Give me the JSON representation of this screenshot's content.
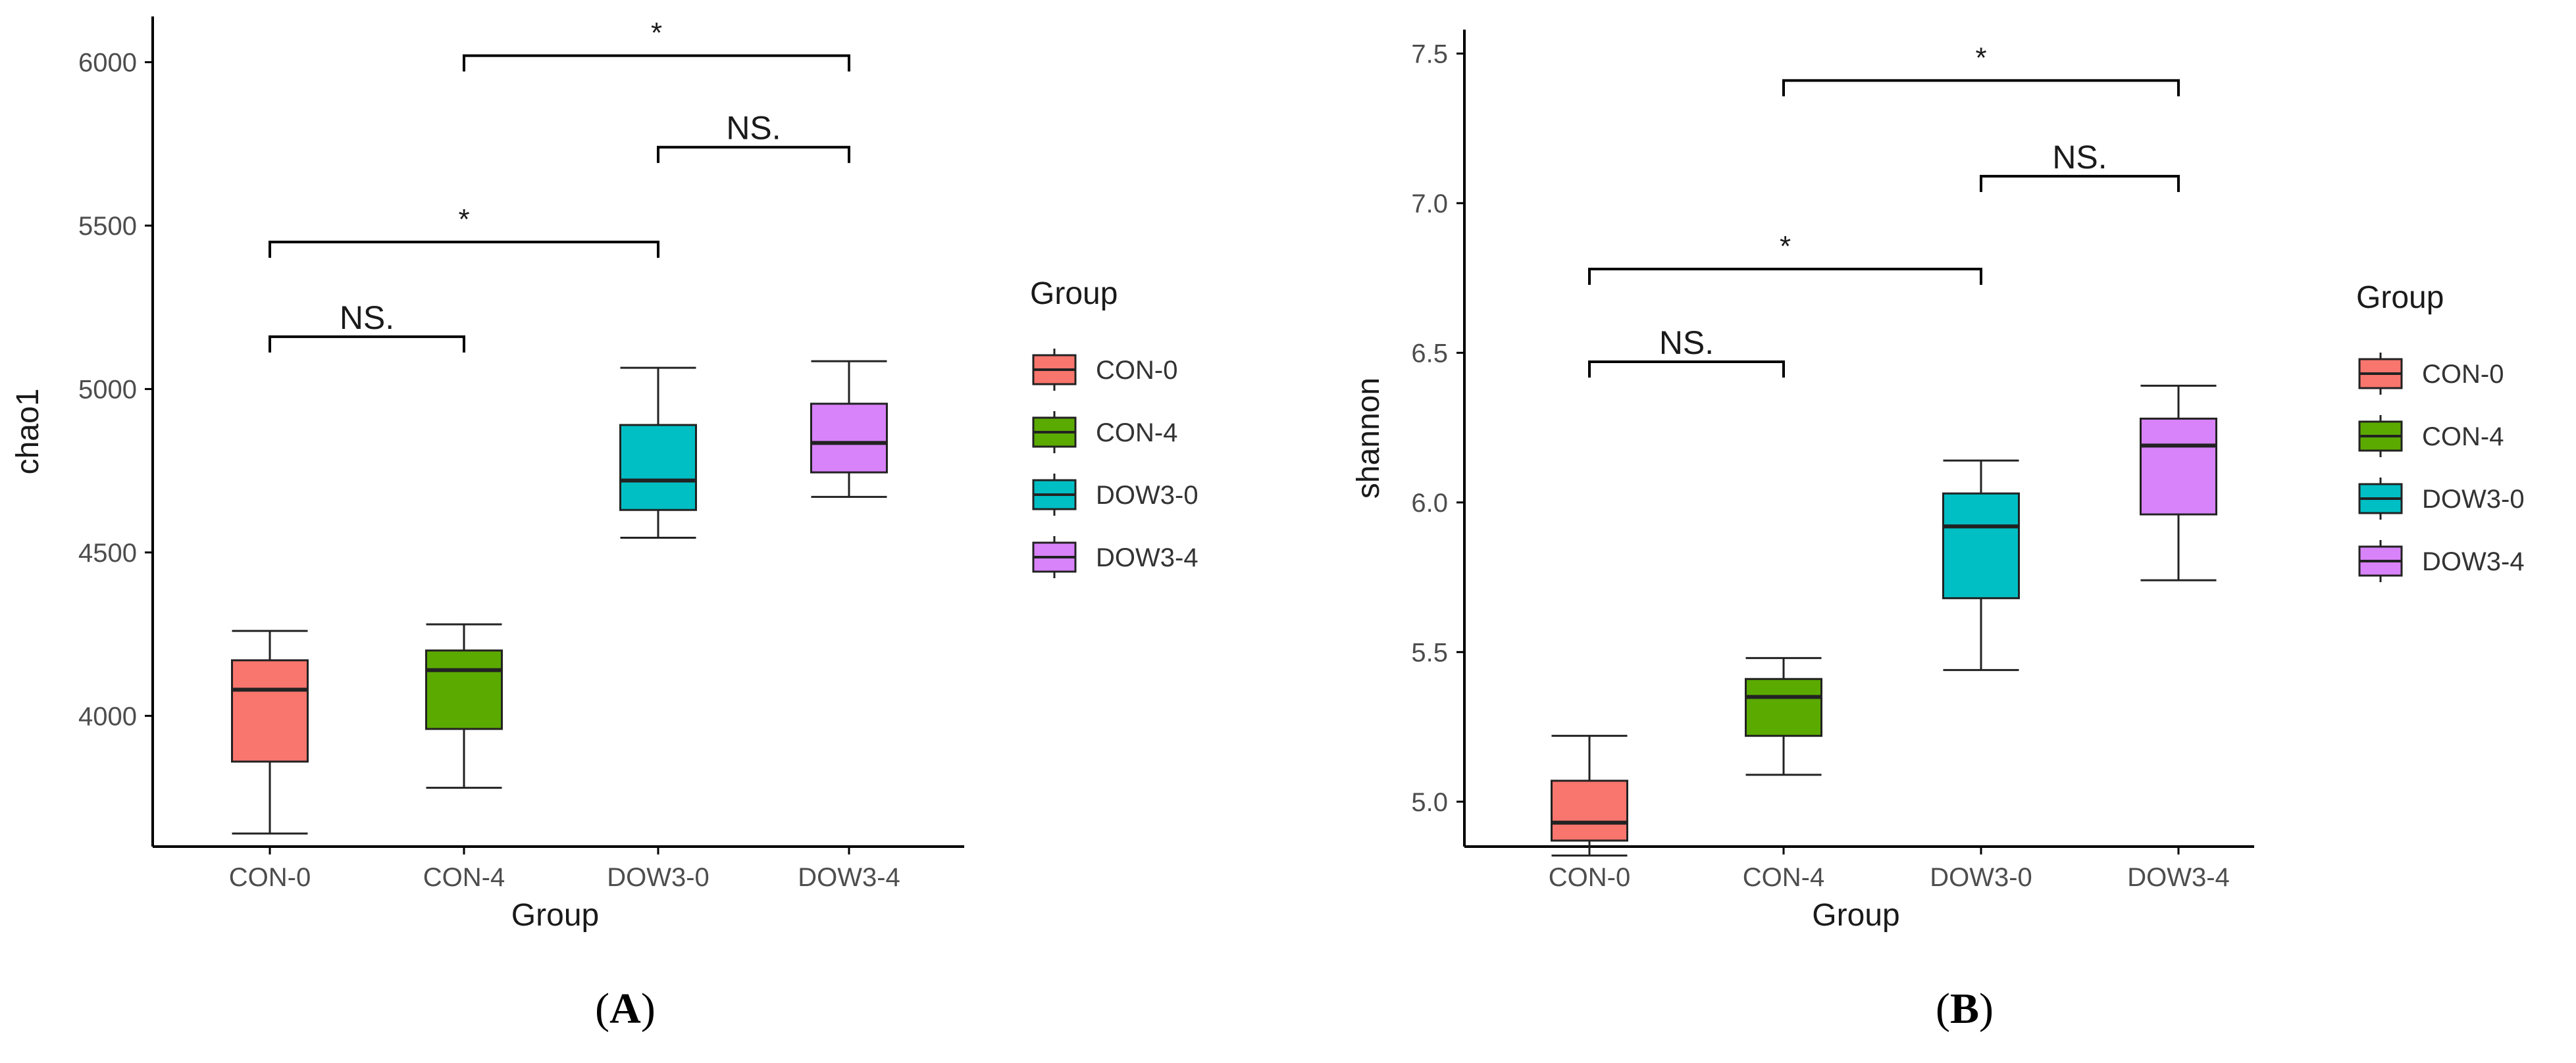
{
  "chart_data": [
    {
      "panel_label": "A",
      "type": "boxplot",
      "xlabel": "Group",
      "ylabel": "chao1",
      "categories": [
        "CON-0",
        "CON-4",
        "DOW3-0",
        "DOW3-4"
      ],
      "ylim": [
        3600,
        6140
      ],
      "yticks": [
        "4000",
        "4500",
        "5000",
        "5500",
        "6000"
      ],
      "boxes": [
        {
          "group": "CON-0",
          "min": 3640,
          "q1": 3860,
          "median": 4080,
          "q3": 4170,
          "max": 4260
        },
        {
          "group": "CON-4",
          "min": 3780,
          "q1": 3960,
          "median": 4140,
          "q3": 4200,
          "max": 4280
        },
        {
          "group": "DOW3-0",
          "min": 4545,
          "q1": 4630,
          "median": 4720,
          "q3": 4890,
          "max": 5065
        },
        {
          "group": "DOW3-4",
          "min": 4670,
          "q1": 4745,
          "median": 4835,
          "q3": 4955,
          "max": 5085
        }
      ],
      "significance": [
        {
          "from": "CON-0",
          "to": "CON-4",
          "y": 5160,
          "label": "NS."
        },
        {
          "from": "CON-0",
          "to": "DOW3-0",
          "y": 5450,
          "label": "*"
        },
        {
          "from": "DOW3-0",
          "to": "DOW3-4",
          "y": 5740,
          "label": "NS."
        },
        {
          "from": "CON-4",
          "to": "DOW3-4",
          "y": 6020,
          "label": "*"
        }
      ],
      "legend": {
        "title": "Group",
        "position": "right",
        "entries": [
          "CON-0",
          "CON-4",
          "DOW3-0",
          "DOW3-4"
        ]
      }
    },
    {
      "panel_label": "B",
      "type": "boxplot",
      "xlabel": "Group",
      "ylabel": "shannon",
      "categories": [
        "CON-0",
        "CON-4",
        "DOW3-0",
        "DOW3-4"
      ],
      "ylim": [
        4.85,
        7.58
      ],
      "yticks": [
        "5.0",
        "5.5",
        "6.0",
        "6.5",
        "7.0",
        "7.5"
      ],
      "boxes": [
        {
          "group": "CON-0",
          "min": 4.82,
          "q1": 4.87,
          "median": 4.93,
          "q3": 5.07,
          "max": 5.22
        },
        {
          "group": "CON-4",
          "min": 5.09,
          "q1": 5.22,
          "median": 5.35,
          "q3": 5.41,
          "max": 5.48
        },
        {
          "group": "DOW3-0",
          "min": 5.44,
          "q1": 5.68,
          "median": 5.92,
          "q3": 6.03,
          "max": 6.14
        },
        {
          "group": "DOW3-4",
          "min": 5.74,
          "q1": 5.96,
          "median": 6.19,
          "q3": 6.28,
          "max": 6.39
        }
      ],
      "significance": [
        {
          "from": "CON-0",
          "to": "CON-4",
          "y": 6.47,
          "label": "NS."
        },
        {
          "from": "CON-0",
          "to": "DOW3-0",
          "y": 6.78,
          "label": "*"
        },
        {
          "from": "DOW3-0",
          "to": "DOW3-4",
          "y": 7.09,
          "label": "NS."
        },
        {
          "from": "CON-4",
          "to": "DOW3-4",
          "y": 7.41,
          "label": "*"
        }
      ],
      "legend": {
        "title": "Group",
        "position": "right",
        "entries": [
          "CON-0",
          "CON-4",
          "DOW3-0",
          "DOW3-4"
        ]
      }
    }
  ],
  "colors": {
    "CON-0": "#F8766D",
    "CON-4": "#5BAA00",
    "DOW3-0": "#00BFC4",
    "DOW3-4": "#D883FA",
    "axis": "#000000",
    "tick_label": "#4d4d4d",
    "text": "#1a1a1a"
  }
}
